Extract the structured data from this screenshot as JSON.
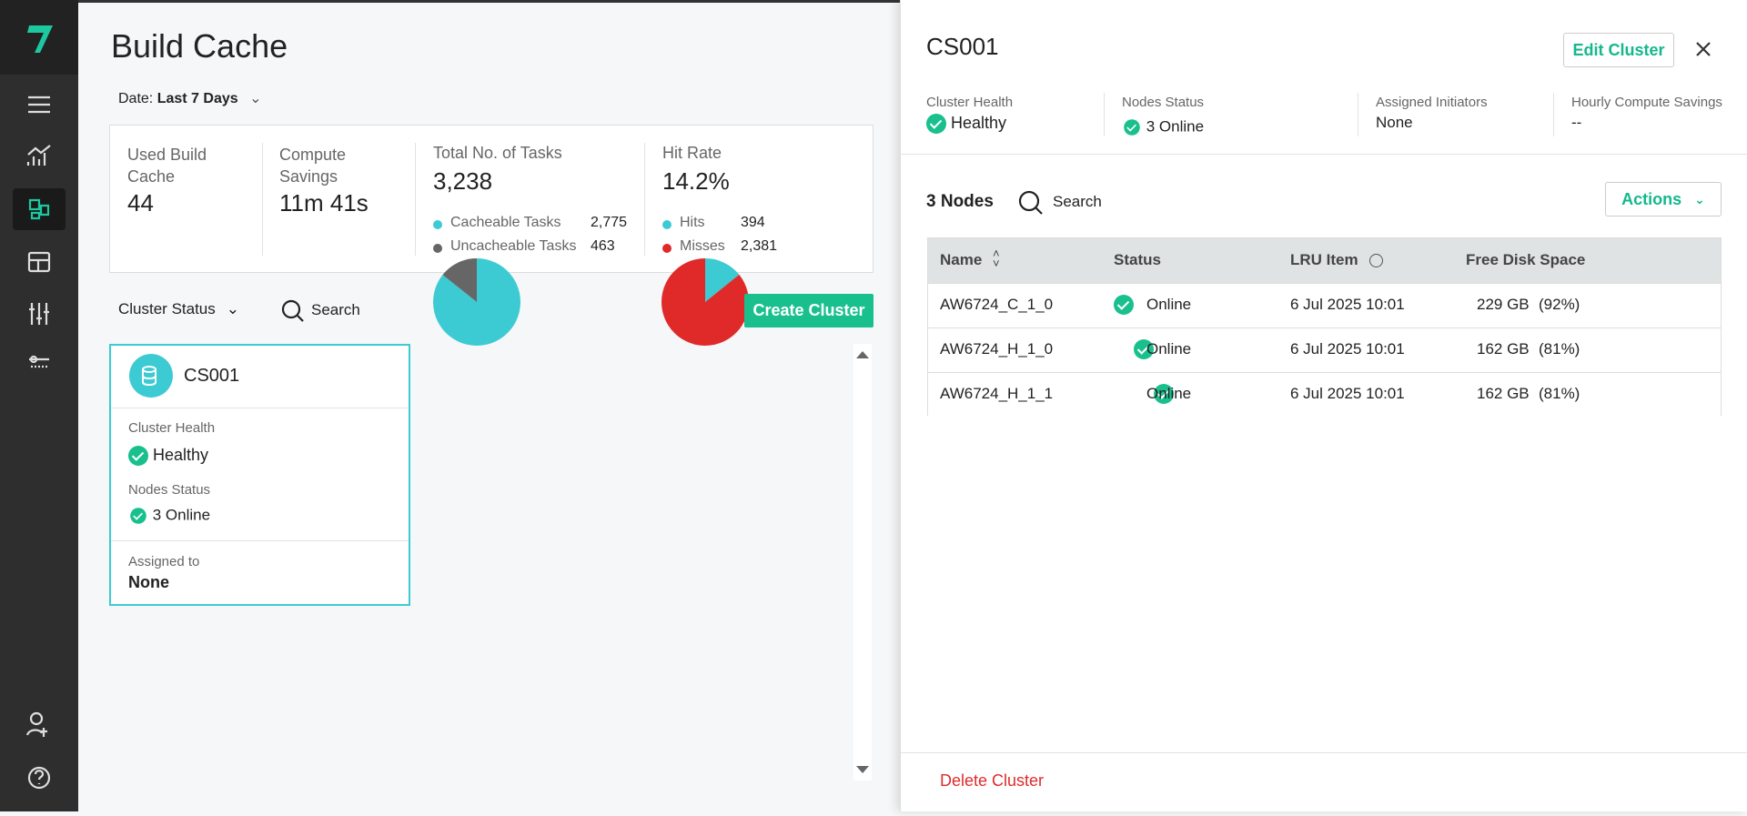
{
  "header": {
    "title": "Build Cache",
    "date_filter": {
      "label": "Date:",
      "value": "Last 7 Days"
    }
  },
  "stats": [
    {
      "label": "Used Build Cache",
      "value": "44"
    },
    {
      "label": "Compute Savings",
      "value": "11m 41s"
    },
    {
      "label": "Total No. of Tasks",
      "value": "3,238",
      "breakdown": [
        {
          "label": "Cacheable Tasks",
          "value": 2775,
          "value_label": "2,775",
          "color": "#3ccbd3"
        },
        {
          "label": "Uncacheable Tasks",
          "value": 463,
          "value_label": "463",
          "color": "#666666"
        }
      ]
    },
    {
      "label": "Hit Rate",
      "value": "14.2%",
      "breakdown": [
        {
          "label": "Hits",
          "value": 394,
          "value_label": "394",
          "color": "#3ccbd3"
        },
        {
          "label": "Misses",
          "value": 2381,
          "value_label": "2,381",
          "color": "#e02a2a"
        }
      ]
    }
  ],
  "toolbar": {
    "filter": "Cluster Status",
    "search": "Search",
    "create": "Create Cluster"
  },
  "card": {
    "name": "CS001",
    "health_label": "Cluster Health",
    "health": "Healthy",
    "nodes_label": "Nodes Status",
    "nodes": "3 Online",
    "assigned_label": "Assigned to",
    "assigned": "None"
  },
  "panel": {
    "title": "CS001",
    "edit": "Edit Cluster",
    "summary": [
      {
        "label": "Cluster Health",
        "value": "Healthy"
      },
      {
        "label": "Nodes Status",
        "value": "3 Online"
      },
      {
        "label": "Assigned Initiators",
        "value": "None"
      },
      {
        "label": "Hourly Compute Savings",
        "value": "--"
      }
    ],
    "nodes_count": "3 Nodes",
    "search": "Search",
    "actions": "Actions",
    "table": {
      "headers": [
        "Name",
        "Status",
        "LRU Item",
        "Free Disk Space"
      ],
      "rows": [
        [
          "AW6724_C_1_0",
          "Online",
          "6 Jul 2025 10:01",
          "229 GB",
          "(92%)"
        ],
        [
          "AW6724_H_1_0",
          "Online",
          "6 Jul 2025 10:01",
          "162 GB",
          "(81%)"
        ],
        [
          "AW6724_H_1_1",
          "Online",
          "6 Jul 2025 10:01",
          "162 GB",
          "(81%)"
        ]
      ]
    },
    "delete": "Delete Cluster"
  }
}
